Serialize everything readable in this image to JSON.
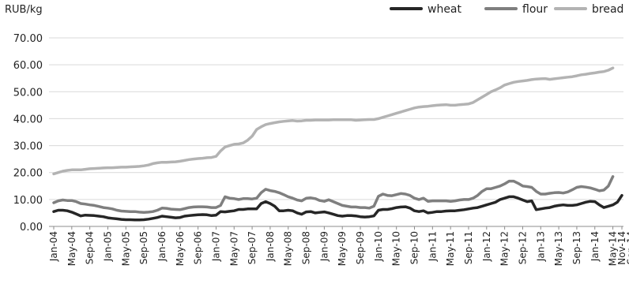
{
  "chart_data": {
    "type": "line",
    "y_unit": "RUB/kg",
    "ylim": [
      0,
      70
    ],
    "yticks": [
      0,
      10,
      20,
      30,
      40,
      50,
      60,
      70
    ],
    "ytick_labels": [
      "0.00",
      "10.00",
      "20.00",
      "30.00",
      "40.00",
      "50.00",
      "60.00",
      "70.00"
    ],
    "x_labels": [
      "Jan-04",
      "May-04",
      "Sep-04",
      "Jan-05",
      "May-05",
      "Sep-05",
      "Jan-06",
      "May-06",
      "Sep-06",
      "Jan-07",
      "May-07",
      "Sep-07",
      "Jan-08",
      "May-08",
      "Sep-08",
      "Jan-09",
      "May-09",
      "Sep-09",
      "Jan-10",
      "May-10",
      "Sep-10",
      "Jan-11",
      "May-11",
      "Sep-11",
      "Jan-12",
      "May-12",
      "Sep-12",
      "Jan-13",
      "May-13",
      "Sep-13",
      "Jan-14",
      "May-14",
      "Sep-14",
      "Nov-14"
    ],
    "grid": true,
    "legend_position": "top-right",
    "series": [
      {
        "name": "wheat",
        "color": "#262626",
        "values": [
          5.5,
          6.0,
          6.0,
          5.8,
          5.3,
          4.6,
          3.9,
          4.2,
          4.1,
          4.0,
          3.8,
          3.6,
          3.2,
          3.0,
          2.8,
          2.6,
          2.5,
          2.5,
          2.4,
          2.4,
          2.5,
          2.7,
          3.0,
          3.3,
          3.8,
          3.6,
          3.4,
          3.2,
          3.3,
          3.8,
          4.0,
          4.2,
          4.3,
          4.4,
          4.3,
          4.0,
          4.2,
          5.5,
          5.4,
          5.6,
          5.8,
          6.3,
          6.3,
          6.5,
          6.5,
          6.5,
          8.5,
          9.2,
          8.5,
          7.5,
          5.8,
          5.8,
          6.0,
          5.8,
          5.0,
          4.5,
          5.4,
          5.5,
          5.0,
          5.2,
          5.4,
          5.0,
          4.5,
          4.0,
          3.8,
          4.0,
          4.0,
          3.9,
          3.6,
          3.5,
          3.6,
          3.9,
          6.0,
          6.3,
          6.3,
          6.6,
          7.0,
          7.2,
          7.3,
          6.8,
          5.8,
          5.5,
          5.8,
          5.0,
          5.2,
          5.5,
          5.5,
          5.7,
          5.8,
          5.8,
          6.0,
          6.2,
          6.5,
          6.8,
          7.0,
          7.5,
          8.0,
          8.5,
          9.0,
          10.0,
          10.5,
          11.0,
          11.0,
          10.5,
          9.8,
          9.2,
          9.5,
          6.2,
          6.5,
          6.8,
          7.0,
          7.5,
          7.8,
          8.0,
          7.8,
          7.8,
          8.0,
          8.5,
          9.0,
          9.3,
          9.2,
          8.0,
          7.0,
          7.5,
          8.0,
          9.0,
          11.5
        ]
      },
      {
        "name": "flour",
        "color": "#7f7f7f",
        "values": [
          8.8,
          9.5,
          9.8,
          9.6,
          9.6,
          9.2,
          8.5,
          8.3,
          8.0,
          7.8,
          7.4,
          7.0,
          6.8,
          6.5,
          6.0,
          5.7,
          5.6,
          5.5,
          5.5,
          5.3,
          5.2,
          5.3,
          5.5,
          6.0,
          6.8,
          6.7,
          6.4,
          6.3,
          6.2,
          6.6,
          7.0,
          7.2,
          7.3,
          7.3,
          7.2,
          7.0,
          7.0,
          7.8,
          11.0,
          10.5,
          10.3,
          10.0,
          10.3,
          10.3,
          10.2,
          10.5,
          12.5,
          13.8,
          13.3,
          13.0,
          12.5,
          11.8,
          11.0,
          10.5,
          9.8,
          9.5,
          10.5,
          10.6,
          10.3,
          9.6,
          9.3,
          9.9,
          9.2,
          8.5,
          7.8,
          7.5,
          7.2,
          7.2,
          7.0,
          7.0,
          6.8,
          7.5,
          11.2,
          12.0,
          11.5,
          11.4,
          11.8,
          12.2,
          12.0,
          11.5,
          10.5,
          10.0,
          10.5,
          9.3,
          9.5,
          9.5,
          9.5,
          9.5,
          9.3,
          9.5,
          9.8,
          10.0,
          10.0,
          10.5,
          11.5,
          13.0,
          14.0,
          14.0,
          14.5,
          15.0,
          15.8,
          16.8,
          16.8,
          16.0,
          15.0,
          14.8,
          14.5,
          13.0,
          12.0,
          12.0,
          12.3,
          12.5,
          12.6,
          12.4,
          12.8,
          13.6,
          14.5,
          14.8,
          14.6,
          14.3,
          13.8,
          13.2,
          13.5,
          15.0,
          18.5
        ]
      },
      {
        "name": "bread",
        "color": "#b3b3b3",
        "values": [
          19.5,
          20.0,
          20.5,
          20.8,
          21.0,
          21.0,
          21.0,
          21.2,
          21.4,
          21.5,
          21.6,
          21.7,
          21.8,
          21.8,
          21.9,
          22.0,
          22.0,
          22.1,
          22.2,
          22.3,
          22.5,
          22.8,
          23.3,
          23.6,
          23.8,
          23.8,
          23.9,
          24.0,
          24.2,
          24.5,
          24.8,
          25.0,
          25.2,
          25.3,
          25.5,
          25.6,
          26.0,
          28.0,
          29.5,
          30.0,
          30.5,
          30.6,
          31.0,
          32.0,
          33.5,
          36.0,
          37.0,
          37.8,
          38.2,
          38.5,
          38.8,
          39.0,
          39.2,
          39.3,
          39.1,
          39.2,
          39.4,
          39.4,
          39.5,
          39.5,
          39.5,
          39.5,
          39.6,
          39.6,
          39.6,
          39.6,
          39.6,
          39.4,
          39.5,
          39.6,
          39.7,
          39.7,
          40.0,
          40.5,
          41.0,
          41.5,
          42.0,
          42.5,
          43.0,
          43.5,
          44.0,
          44.3,
          44.5,
          44.6,
          44.8,
          45.0,
          45.1,
          45.2,
          45.0,
          45.0,
          45.2,
          45.3,
          45.5,
          46.0,
          47.0,
          48.0,
          49.0,
          50.0,
          50.7,
          51.5,
          52.5,
          53.0,
          53.5,
          53.8,
          54.0,
          54.2,
          54.5,
          54.7,
          54.8,
          54.9,
          54.6,
          54.8,
          55.0,
          55.2,
          55.4,
          55.6,
          55.9,
          56.3,
          56.5,
          56.8,
          57.0,
          57.3,
          57.5,
          58.0,
          58.8
        ]
      }
    ]
  }
}
